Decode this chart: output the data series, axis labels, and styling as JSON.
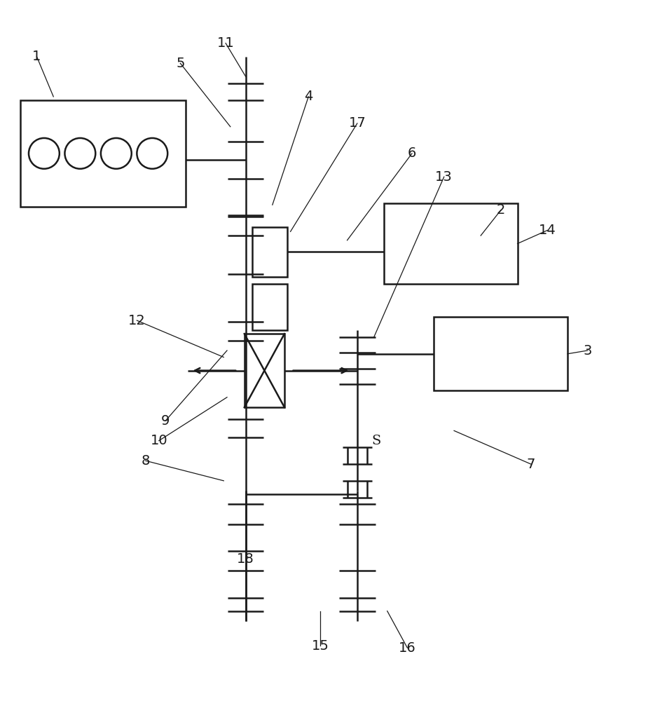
{
  "bg": "#ffffff",
  "lc": "#1a1a1a",
  "lw": 1.8,
  "fig_w": 9.53,
  "fig_h": 10.0,
  "dpi": 100
}
